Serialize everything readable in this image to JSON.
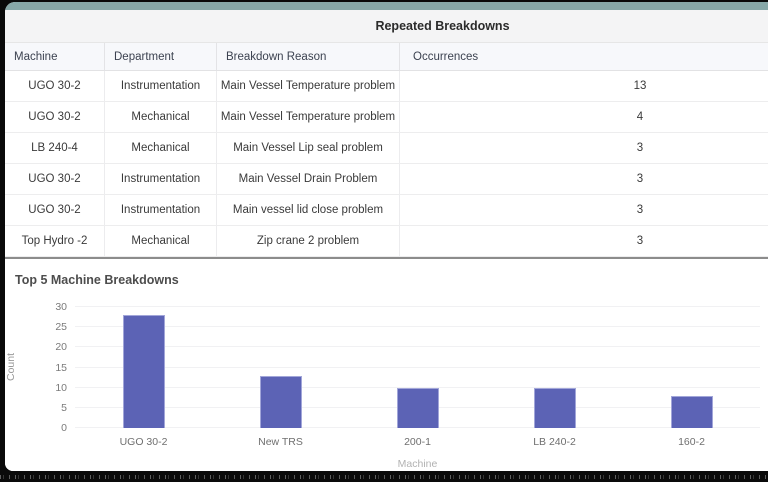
{
  "accent": {
    "top_bar_color": "#87a8a8",
    "page_background": "#0a0a0a"
  },
  "breakdown_table": {
    "title": "Repeated Breakdowns",
    "columns": [
      "Machine",
      "Department",
      "Breakdown Reason",
      "Occurrences"
    ],
    "rows": [
      [
        "UGO 30-2",
        "Instrumentation",
        "Main Vessel Temperature problem",
        "13"
      ],
      [
        "UGO 30-2",
        "Mechanical",
        "Main Vessel Temperature problem",
        "4"
      ],
      [
        "LB 240-4",
        "Mechanical",
        "Main Vessel Lip seal problem",
        "3"
      ],
      [
        "UGO 30-2",
        "Instrumentation",
        "Main Vessel Drain Problem",
        "3"
      ],
      [
        "UGO 30-2",
        "Instrumentation",
        "Main vessel lid close problem",
        "3"
      ],
      [
        "Top Hydro -2",
        "Mechanical",
        "Zip crane 2 problem",
        "3"
      ]
    ]
  },
  "chart_data": {
    "type": "bar",
    "title": "Top 5 Machine Breakdowns",
    "categories": [
      "UGO 30-2",
      "New TRS",
      "200-1",
      "LB 240-2",
      "160-2"
    ],
    "values": [
      28,
      13,
      10,
      10,
      8
    ],
    "xlabel": "Machine",
    "ylabel": "Count",
    "ylim": [
      0,
      30
    ],
    "yticks": [
      0,
      5,
      10,
      15,
      20,
      25,
      30
    ],
    "bar_color": "#5c63b5",
    "grid": true,
    "legend_position": "none"
  }
}
